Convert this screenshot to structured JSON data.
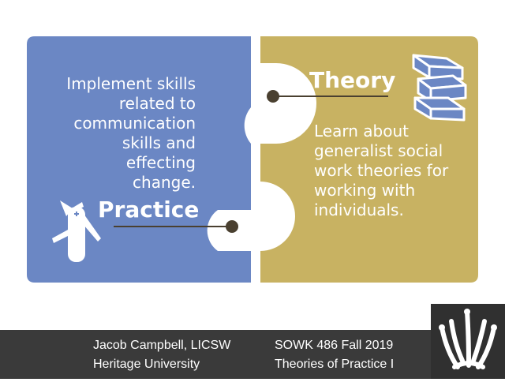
{
  "slide": {
    "practice": {
      "heading": "Practice",
      "body_lines": [
        "Implement skills",
        "related to",
        "communication",
        "skills and effecting",
        "change."
      ],
      "icon": "swiss-army-knife-icon"
    },
    "theory": {
      "heading": "Theory",
      "body_lines": [
        "Learn about",
        "generalist social",
        "work theories for",
        "working with",
        "individuals."
      ],
      "icon": "books-icon"
    },
    "colors": {
      "practice_blue": "#6b87c4",
      "theory_gold": "#c8b262",
      "connector_dark": "#4a4030",
      "footer_bg": "#3a3a3a"
    }
  },
  "footer": {
    "author": "Jacob Campbell, LICSW",
    "institution": "Heritage University",
    "course": "SOWK 486 Fall 2019",
    "course_title": "Theories of Practice I",
    "logo_icon": "heritage-university-logo-icon"
  }
}
